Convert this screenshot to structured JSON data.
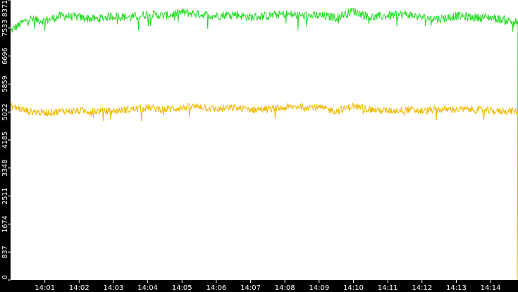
{
  "chart_data": {
    "type": "line",
    "title": "",
    "xlabel": "",
    "ylabel": "",
    "grid": false,
    "legend": "none",
    "yticks": [
      0,
      837,
      1674,
      2511,
      3348,
      4185,
      5022,
      5859,
      6696,
      7533,
      8371
    ],
    "ylim": [
      0,
      8371
    ],
    "xticks": [
      "14:01",
      "14:02",
      "14:03",
      "14:04",
      "14:05",
      "14:06",
      "14:07",
      "14:08",
      "14:09",
      "14:10",
      "14:11",
      "14:12",
      "14:13",
      "14:14"
    ],
    "x_start": "14:00:00",
    "x_end": "14:14:48",
    "colors": {
      "axis_background": "#000000",
      "plot_background": "#ffffff",
      "tick_text": "#ffffff"
    },
    "series": [
      {
        "color": "#22dd22",
        "x": [
          "14:00:00",
          "14:00:30",
          "14:01:00",
          "14:01:30",
          "14:02:00",
          "14:02:30",
          "14:03:00",
          "14:03:30",
          "14:04:00",
          "14:04:30",
          "14:05:00",
          "14:05:30",
          "14:06:00",
          "14:06:30",
          "14:07:00",
          "14:07:30",
          "14:08:00",
          "14:08:30",
          "14:09:00",
          "14:09:30",
          "14:10:00",
          "14:10:30",
          "14:11:00",
          "14:11:30",
          "14:12:00",
          "14:12:30",
          "14:13:00",
          "14:13:30",
          "14:14:00",
          "14:14:30",
          "14:14:48"
        ],
        "values": [
          7450,
          7800,
          7750,
          7900,
          7850,
          7800,
          7900,
          7850,
          7950,
          7900,
          8000,
          7950,
          7900,
          7950,
          7850,
          7900,
          7950,
          7900,
          7900,
          7850,
          8050,
          7850,
          7900,
          7950,
          7850,
          7800,
          7900,
          7850,
          7850,
          7750,
          7700
        ]
      },
      {
        "color": "#f0b800",
        "x": [
          "14:00:00",
          "14:00:30",
          "14:01:00",
          "14:01:30",
          "14:02:00",
          "14:02:30",
          "14:03:00",
          "14:03:30",
          "14:04:00",
          "14:04:30",
          "14:05:00",
          "14:05:30",
          "14:06:00",
          "14:06:30",
          "14:07:00",
          "14:07:30",
          "14:08:00",
          "14:08:30",
          "14:09:00",
          "14:09:30",
          "14:10:00",
          "14:10:30",
          "14:11:00",
          "14:11:30",
          "14:12:00",
          "14:12:30",
          "14:13:00",
          "14:13:30",
          "14:14:00",
          "14:14:30",
          "14:14:48"
        ],
        "values": [
          5200,
          5050,
          5000,
          5050,
          5050,
          5050,
          5050,
          5100,
          5150,
          5100,
          5150,
          5200,
          5100,
          5150,
          5100,
          5100,
          5150,
          5200,
          5150,
          5050,
          5200,
          5100,
          5050,
          5100,
          5050,
          5100,
          5100,
          5100,
          5050,
          5050,
          5050
        ]
      }
    ]
  }
}
